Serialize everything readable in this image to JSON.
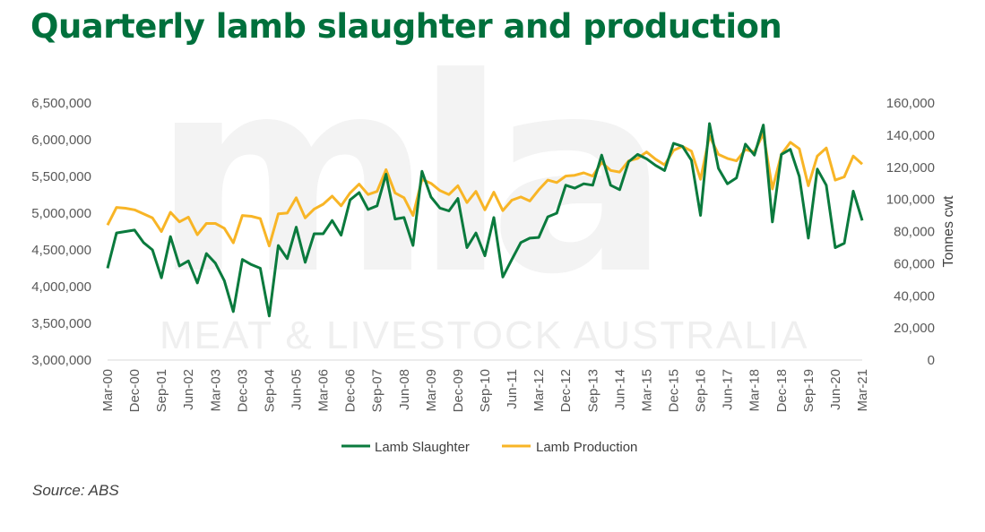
{
  "title": "Quarterly lamb slaughter and production",
  "source": "Source: ABS",
  "watermark": {
    "logo": "mla",
    "text": "MEAT & LIVESTOCK AUSTRALIA"
  },
  "colors": {
    "title": "#00703c",
    "slaughter": "#0a7a3d",
    "production": "#f8b526"
  },
  "chart_data": {
    "type": "line",
    "xlabel": "",
    "ylabel_left": "",
    "ylabel_right": "Tonnes cwt",
    "ylim_left": [
      3000000,
      6500000
    ],
    "ylim_right": [
      0,
      160000
    ],
    "yticks_left": [
      "3,000,000",
      "3,500,000",
      "4,000,000",
      "4,500,000",
      "5,000,000",
      "5,500,000",
      "6,000,000",
      "6,500,000"
    ],
    "yticks_right": [
      "0",
      "20,000",
      "40,000",
      "60,000",
      "80,000",
      "100,000",
      "120,000",
      "140,000",
      "160,000"
    ],
    "yticks_left_values": [
      3000000,
      3500000,
      4000000,
      4500000,
      5000000,
      5500000,
      6000000,
      6500000
    ],
    "yticks_right_values": [
      0,
      20000,
      40000,
      60000,
      80000,
      100000,
      120000,
      140000,
      160000
    ],
    "x": [
      "Mar-00",
      "Jun-00",
      "Sep-00",
      "Dec-00",
      "Mar-01",
      "Jun-01",
      "Sep-01",
      "Dec-01",
      "Mar-02",
      "Jun-02",
      "Sep-02",
      "Dec-02",
      "Mar-03",
      "Jun-03",
      "Sep-03",
      "Dec-03",
      "Mar-04",
      "Jun-04",
      "Sep-04",
      "Dec-04",
      "Mar-05",
      "Jun-05",
      "Sep-05",
      "Dec-05",
      "Mar-06",
      "Jun-06",
      "Sep-06",
      "Dec-06",
      "Mar-07",
      "Jun-07",
      "Sep-07",
      "Dec-07",
      "Mar-08",
      "Jun-08",
      "Sep-08",
      "Dec-08",
      "Mar-09",
      "Jun-09",
      "Sep-09",
      "Dec-09",
      "Mar-10",
      "Jun-10",
      "Sep-10",
      "Dec-10",
      "Mar-11",
      "Jun-11",
      "Sep-11",
      "Dec-11",
      "Mar-12",
      "Jun-12",
      "Sep-12",
      "Dec-12",
      "Mar-13",
      "Jun-13",
      "Sep-13",
      "Dec-13",
      "Mar-14",
      "Jun-14",
      "Sep-14",
      "Dec-14",
      "Mar-15",
      "Jun-15",
      "Sep-15",
      "Dec-15",
      "Mar-16",
      "Jun-16",
      "Sep-16",
      "Dec-16",
      "Mar-17",
      "Jun-17",
      "Sep-17",
      "Dec-17",
      "Mar-18",
      "Jun-18",
      "Sep-18",
      "Dec-18",
      "Mar-19",
      "Jun-19",
      "Sep-19",
      "Dec-19",
      "Mar-20",
      "Jun-20",
      "Sep-20",
      "Dec-20",
      "Mar-21"
    ],
    "x_tick_labels": [
      "Mar-00",
      "Dec-00",
      "Sep-01",
      "Jun-02",
      "Mar-03",
      "Dec-03",
      "Sep-04",
      "Jun-05",
      "Mar-06",
      "Dec-06",
      "Sep-07",
      "Jun-08",
      "Mar-09",
      "Dec-09",
      "Sep-10",
      "Jun-11",
      "Mar-12",
      "Dec-12",
      "Sep-13",
      "Jun-14",
      "Mar-15",
      "Dec-15",
      "Sep-16",
      "Jun-17",
      "Mar-18",
      "Dec-18",
      "Sep-19",
      "Jun-20",
      "Mar-21"
    ],
    "legend_position": "bottom",
    "series": [
      {
        "name": "Lamb Slaughter",
        "axis": "left",
        "values": [
          4250000,
          4730000,
          4750000,
          4770000,
          4600000,
          4500000,
          4120000,
          4680000,
          4280000,
          4350000,
          4050000,
          4450000,
          4320000,
          4080000,
          3660000,
          4370000,
          4300000,
          4250000,
          3600000,
          4560000,
          4380000,
          4810000,
          4330000,
          4720000,
          4720000,
          4900000,
          4700000,
          5180000,
          5280000,
          5050000,
          5100000,
          5530000,
          4920000,
          4940000,
          4560000,
          5570000,
          5220000,
          5070000,
          5030000,
          5200000,
          4530000,
          4730000,
          4420000,
          4940000,
          4130000,
          4370000,
          4600000,
          4660000,
          4670000,
          4950000,
          5000000,
          5380000,
          5340000,
          5400000,
          5380000,
          5790000,
          5380000,
          5320000,
          5700000,
          5800000,
          5740000,
          5650000,
          5580000,
          5950000,
          5910000,
          5720000,
          4970000,
          6220000,
          5610000,
          5400000,
          5480000,
          5940000,
          5790000,
          6200000,
          4880000,
          5800000,
          5870000,
          5500000,
          4660000,
          5600000,
          5380000,
          4530000,
          4590000,
          5300000,
          4900000
        ]
      },
      {
        "name": "Lamb Production",
        "axis": "right",
        "values": [
          84000,
          95000,
          94500,
          93500,
          91000,
          88500,
          80000,
          92000,
          86000,
          89000,
          78000,
          85000,
          85000,
          82000,
          73000,
          90000,
          89500,
          88000,
          71000,
          91000,
          91500,
          101000,
          88500,
          94000,
          97000,
          102000,
          96000,
          104000,
          109500,
          103000,
          105000,
          118500,
          104000,
          101000,
          90000,
          112500,
          110000,
          105500,
          103000,
          108500,
          98000,
          105000,
          93500,
          104500,
          93000,
          99500,
          101500,
          99000,
          106000,
          112000,
          110500,
          114500,
          115000,
          116500,
          114500,
          123000,
          118000,
          117000,
          124000,
          125500,
          129500,
          125000,
          121500,
          130500,
          133000,
          130000,
          112500,
          139500,
          128000,
          125500,
          124000,
          131000,
          129500,
          141000,
          106500,
          128000,
          135500,
          131500,
          108500,
          127000,
          132000,
          112000,
          114000,
          127000,
          122000
        ]
      }
    ]
  }
}
